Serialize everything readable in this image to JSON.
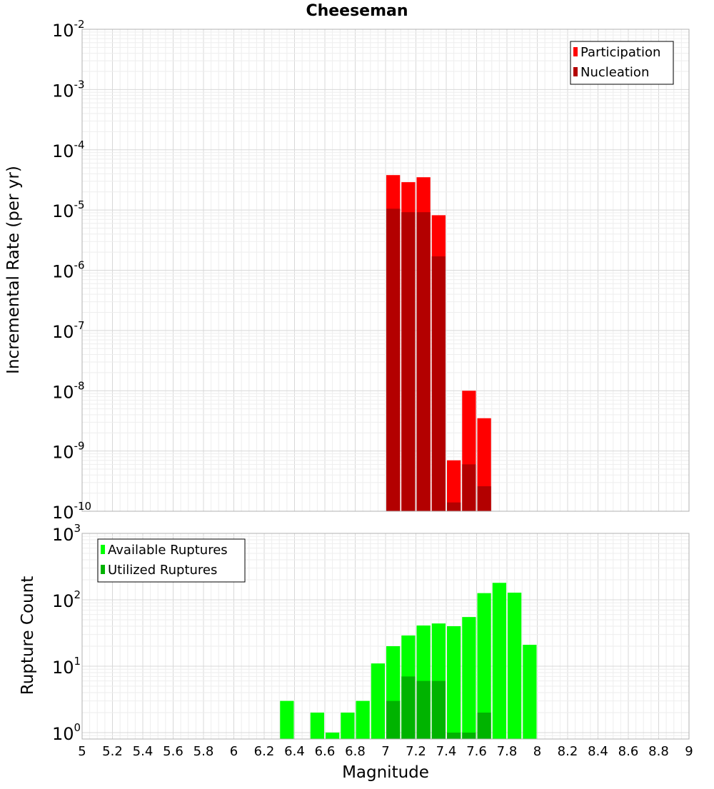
{
  "chart_data": [
    {
      "type": "bar",
      "title": "Cheeseman",
      "xlabel": "",
      "ylabel": "Incremental Rate (per yr)",
      "xlim": [
        5,
        9
      ],
      "ylim": [
        1e-10,
        0.01
      ],
      "yscale": "log",
      "grid": true,
      "legend_position": "top-right",
      "bar_width": 0.1,
      "series": [
        {
          "name": "Participation",
          "color": "#ff0000",
          "x": [
            7.05,
            7.15,
            7.25,
            7.35,
            7.45,
            7.55,
            7.65
          ],
          "values": [
            3.8e-05,
            2.9e-05,
            3.5e-05,
            8.2e-06,
            7e-10,
            1e-08,
            3.5e-09
          ]
        },
        {
          "name": "Nucleation",
          "color": "#b30000",
          "x": [
            7.05,
            7.15,
            7.25,
            7.35,
            7.45,
            7.55,
            7.65
          ],
          "values": [
            1.05e-05,
            9.2e-06,
            9.2e-06,
            1.7e-06,
            1.4e-10,
            6e-10,
            2.6e-10
          ]
        }
      ],
      "y_ticks": [
        {
          "base": "10",
          "exp": "-10",
          "value": 1e-10
        },
        {
          "base": "10",
          "exp": "-9",
          "value": 1e-09
        },
        {
          "base": "10",
          "exp": "-8",
          "value": 1e-08
        },
        {
          "base": "10",
          "exp": "-7",
          "value": 1e-07
        },
        {
          "base": "10",
          "exp": "-6",
          "value": 1e-06
        },
        {
          "base": "10",
          "exp": "-5",
          "value": 1e-05
        },
        {
          "base": "10",
          "exp": "-4",
          "value": 0.0001
        },
        {
          "base": "10",
          "exp": "-3",
          "value": 0.001
        },
        {
          "base": "10",
          "exp": "-2",
          "value": 0.01
        }
      ]
    },
    {
      "type": "bar",
      "title": "",
      "xlabel": "Magnitude",
      "ylabel": "Rupture Count",
      "xlim": [
        5,
        9
      ],
      "ylim": [
        0.8,
        1000
      ],
      "yscale": "log",
      "grid": true,
      "legend_position": "top-left",
      "bar_width": 0.1,
      "x_ticks": [
        "5",
        "5.2",
        "5.4",
        "5.6",
        "5.8",
        "6",
        "6.2",
        "6.4",
        "6.6",
        "6.8",
        "7",
        "7.2",
        "7.4",
        "7.6",
        "7.8",
        "8",
        "8.2",
        "8.4",
        "8.6",
        "8.8",
        "9"
      ],
      "series": [
        {
          "name": "Available Ruptures",
          "color": "#00ff00",
          "x": [
            6.35,
            6.55,
            6.65,
            6.75,
            6.85,
            6.95,
            7.05,
            7.15,
            7.25,
            7.35,
            7.45,
            7.55,
            7.65,
            7.75,
            7.85,
            7.95
          ],
          "values": [
            3,
            2,
            1,
            2,
            3,
            11,
            20,
            29,
            41,
            44,
            40,
            55,
            126,
            180,
            128,
            21
          ]
        },
        {
          "name": "Utilized Ruptures",
          "color": "#00b300",
          "x": [
            7.05,
            7.15,
            7.25,
            7.35,
            7.45,
            7.55,
            7.65
          ],
          "values": [
            3,
            7,
            6,
            6,
            1,
            1,
            2
          ]
        }
      ],
      "y_ticks": [
        {
          "base": "10",
          "exp": "0",
          "value": 1
        },
        {
          "base": "10",
          "exp": "1",
          "value": 10
        },
        {
          "base": "10",
          "exp": "2",
          "value": 100
        },
        {
          "base": "10",
          "exp": "3",
          "value": 1000
        }
      ]
    }
  ]
}
